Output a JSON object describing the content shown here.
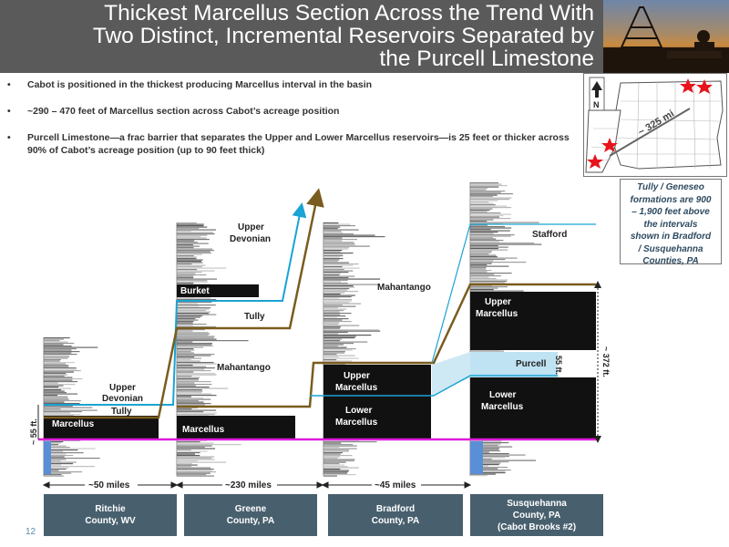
{
  "header": {
    "title_line1": "Thickest Marcellus Section Across the Trend With",
    "title_line2": "Two Distinct, Incremental Reservoirs Separated by",
    "title_line3": "the Purcell Limestone"
  },
  "bullets": [
    {
      "dot": "•",
      "text": "Cabot is positioned in the thickest producing Marcellus interval in the basin"
    },
    {
      "dot": "•",
      "text": "~290 – 470 feet of Marcellus section across Cabot’s acreage position"
    },
    {
      "dot": "•",
      "text": "Purcell Limestone—a frac barrier that separates the Upper and Lower Marcellus reservoirs—is 25 feet or thicker across 90% of Cabot’s acreage position (up to 90 feet thick)"
    }
  ],
  "map": {
    "north_label": "N",
    "distance_label": "~ 325 mi",
    "star_color": "#e8141c"
  },
  "note": {
    "line1": "Tully / Geneseo",
    "line2": "formations are 900",
    "line3": "– 1,900 feet above",
    "line4": "the intervals",
    "line5": "shown in Bradford",
    "line6": "/ Susquehanna",
    "line7": "Counties, PA"
  },
  "well1": {
    "marcellus": "Marcellus",
    "upper_devonian_1": "Upper",
    "upper_devonian_2": "Devonian",
    "tully": "Tully",
    "thickness": "~ 55 ft."
  },
  "well2": {
    "upper_devonian_1": "Upper",
    "upper_devonian_2": "Devonian",
    "burket": "Burket",
    "tully": "Tully",
    "mahantango": "Mahantango",
    "marcellus": "Marcellus"
  },
  "well3": {
    "mahantango": "Mahantango",
    "upper_marcellus_1": "Upper",
    "upper_marcellus_2": "Marcellus",
    "lower_marcellus_1": "Lower",
    "lower_marcellus_2": "Marcellus"
  },
  "well4": {
    "stafford": "Stafford",
    "upper_marcellus_1": "Upper",
    "upper_marcellus_2": "Marcellus",
    "purcell": "Purcell",
    "purcell_thickness": "55 ft.",
    "lower_marcellus_1": "Lower",
    "lower_marcellus_2": "Marcellus",
    "total_thickness": "~ 372 ft."
  },
  "distances": {
    "d1": "~50 miles",
    "d2": "~230 miles",
    "d3": "~45 miles"
  },
  "counties": [
    {
      "line1": "Ritchie",
      "line2": "County, WV",
      "line3": ""
    },
    {
      "line1": "Greene",
      "line2": "County, PA",
      "line3": ""
    },
    {
      "line1": "Bradford",
      "line2": "County, PA",
      "line3": ""
    },
    {
      "line1": "Susquehanna",
      "line2": "County, PA",
      "line3": "(Cabot Brooks #2)"
    }
  ],
  "colors": {
    "tully_line": "#1aa3d4",
    "marcellus_line": "#7a5c1e",
    "base_line": "#e01ad8",
    "county_box": "#48606e"
  },
  "page_number": "12"
}
